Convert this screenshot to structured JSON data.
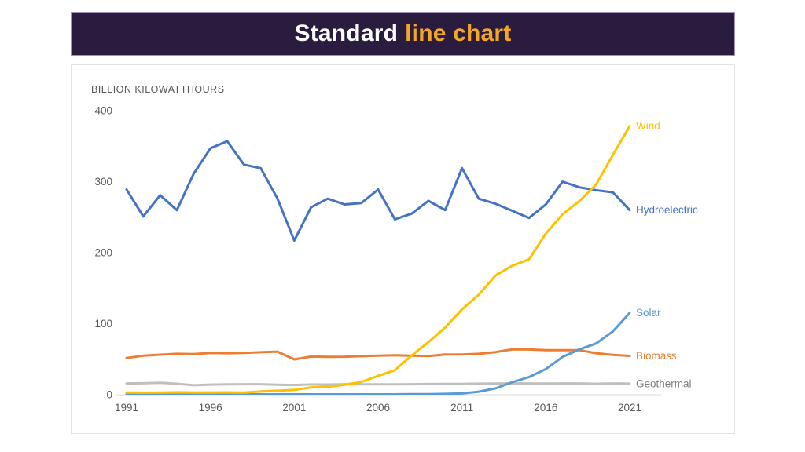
{
  "header": {
    "title_main": "Standard",
    "title_accent": "line chart",
    "bg_color": "#2a1c3e",
    "main_color": "#ffffff",
    "accent_color": "#f4a727"
  },
  "chart_data": {
    "type": "line",
    "title": "Standard line chart",
    "ylabel": "BILLION KILOWATTHOURS",
    "xlabel": "",
    "grid": false,
    "legend_position": "line-end-labels-right",
    "ylim": [
      0,
      400
    ],
    "y_ticks": [
      400,
      300,
      200,
      100,
      0
    ],
    "x_ticks": [
      1991,
      1996,
      2001,
      2006,
      2011,
      2016,
      2021
    ],
    "axis_text_color": "#595959",
    "axis_line_color": "#d9d9d9",
    "x": [
      1991,
      1992,
      1993,
      1994,
      1995,
      1996,
      1997,
      1998,
      1999,
      2000,
      2001,
      2002,
      2003,
      2004,
      2005,
      2006,
      2007,
      2008,
      2009,
      2010,
      2011,
      2012,
      2013,
      2014,
      2015,
      2016,
      2017,
      2018,
      2019,
      2020,
      2021
    ],
    "series": [
      {
        "name": "Hydroelectric",
        "color": "#4472c4",
        "label_color": "#4472c4",
        "values": [
          289,
          251,
          281,
          260,
          311,
          347,
          357,
          324,
          319,
          276,
          217,
          264,
          276,
          268,
          270,
          289,
          247,
          255,
          273,
          260,
          319,
          276,
          269,
          259,
          249,
          268,
          300,
          292,
          288,
          285,
          260
        ]
      },
      {
        "name": "Biomass",
        "color": "#ed7d31",
        "label_color": "#ed7d31",
        "values": [
          51.7,
          54.9,
          56.3,
          57.6,
          57.2,
          58.8,
          58.5,
          58.9,
          59.8,
          60.7,
          49.7,
          53.7,
          53.3,
          53.5,
          54.3,
          54.9,
          55.5,
          55.0,
          54.5,
          56.6,
          56.7,
          57.6,
          60.0,
          63.9,
          63.6,
          62.8,
          62.7,
          62.8,
          58.4,
          56.1,
          54.7
        ]
      },
      {
        "name": "Geothermal",
        "color": "#bfbfbf",
        "label_color": "#7f7f7f",
        "values": [
          15.9,
          16.1,
          16.8,
          15.5,
          13.4,
          14.3,
          14.7,
          14.8,
          14.8,
          14.1,
          13.7,
          14.5,
          14.4,
          14.8,
          14.7,
          14.6,
          14.6,
          14.8,
          15.0,
          15.2,
          15.3,
          15.6,
          15.8,
          15.9,
          15.9,
          15.8,
          15.9,
          15.9,
          15.5,
          15.9,
          15.6
        ]
      },
      {
        "name": "Solar",
        "color": "#5b9bd5",
        "label_color": "#5b9bd5",
        "values": [
          0.5,
          0.4,
          0.5,
          0.5,
          0.5,
          0.5,
          0.5,
          0.5,
          0.5,
          0.5,
          0.5,
          0.6,
          0.5,
          0.6,
          0.6,
          0.5,
          0.6,
          0.9,
          0.9,
          1.2,
          1.8,
          4.3,
          9.0,
          17.7,
          24.9,
          36.1,
          53.3,
          63.8,
          72.2,
          89.2,
          115.3
        ]
      },
      {
        "name": "Wind",
        "color": "#ffc000",
        "label_color": "#ffc107",
        "values": [
          3.0,
          2.9,
          3.0,
          3.4,
          3.2,
          3.2,
          3.3,
          3.0,
          4.5,
          5.6,
          6.7,
          10.4,
          11.2,
          14.1,
          17.8,
          26.6,
          34.5,
          55.4,
          73.9,
          94.7,
          120.2,
          140.8,
          167.8,
          181.7,
          190.7,
          226.9,
          254.3,
          272.7,
          295.9,
          337.9,
          378.2
        ]
      }
    ]
  }
}
